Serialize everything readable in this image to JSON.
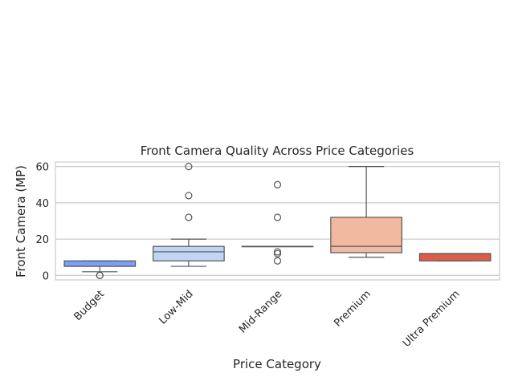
{
  "chart_data": {
    "type": "box",
    "title": "Front Camera Quality Across Price Categories",
    "xlabel": "Price Category",
    "ylabel": "Front Camera (MP)",
    "ylim": [
      -2.5,
      62.5
    ],
    "yticks": [
      0,
      20,
      40,
      60
    ],
    "grid": true,
    "categories": [
      "Budget",
      "Low-Mid",
      "Mid-Range",
      "Premium",
      "Ultra Premium"
    ],
    "boxes": [
      {
        "category": "Budget",
        "color": "#7b9ff9",
        "whisker_low": 2,
        "q1": 5,
        "median": 5,
        "q3": 8,
        "whisker_high": 8,
        "outliers": [
          0,
          0
        ]
      },
      {
        "category": "Low-Mid",
        "color": "#c0d4f5",
        "whisker_low": 5,
        "q1": 8,
        "median": 13,
        "q3": 16,
        "whisker_high": 20,
        "outliers": [
          32,
          44,
          60
        ]
      },
      {
        "category": "Mid-Range",
        "color": "#dddcdc",
        "whisker_low": 16,
        "q1": 16,
        "median": 16,
        "q3": 16,
        "whisker_high": 16,
        "outliers": [
          8,
          12,
          13,
          32,
          50
        ]
      },
      {
        "category": "Premium",
        "color": "#f2b9a1",
        "whisker_low": 10,
        "q1": 12.5,
        "median": 16,
        "q3": 32,
        "whisker_high": 60,
        "outliers": []
      },
      {
        "category": "Ultra Premium",
        "color": "#dc5d4a",
        "whisker_low": 8,
        "q1": 8,
        "median": 12,
        "q3": 12,
        "whisker_high": 12,
        "outliers": []
      }
    ]
  }
}
